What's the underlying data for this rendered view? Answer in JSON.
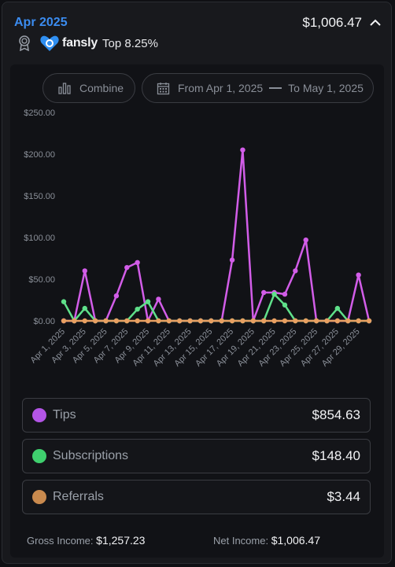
{
  "header": {
    "month": "Apr 2025",
    "total": "$1,006.47",
    "brand": "fansly",
    "rank": "Top 8.25%"
  },
  "icons": {
    "award": "award-ribbon-icon",
    "logo": "fansly-heart-logo",
    "collapse": "chevron-up-icon",
    "combine": "bar-chart-icon",
    "calendar": "calendar-icon"
  },
  "controls": {
    "combine_label": "Combine",
    "from_label": "From Apr 1, 2025",
    "to_label": "To May 1, 2025"
  },
  "chart_data": {
    "type": "line",
    "y_tick_labels": [
      "$0.00",
      "$50.00",
      "$100.00",
      "$150.00",
      "$200.00",
      "$250.00"
    ],
    "ylim": [
      0,
      250
    ],
    "x_tick_labels": [
      "Apr 1, 2025",
      "Apr 3, 2025",
      "Apr 5, 2025",
      "Apr 7, 2025",
      "Apr 9, 2025",
      "Apr 11, 2025",
      "Apr 13, 2025",
      "Apr 15, 2025",
      "Apr 17, 2025",
      "Apr 19, 2025",
      "Apr 21, 2025",
      "Apr 23, 2025",
      "Apr 25, 2025",
      "Apr 27, 2025",
      "Apr 29, 2025"
    ],
    "x": [
      "Apr 1",
      "Apr 2",
      "Apr 3",
      "Apr 4",
      "Apr 5",
      "Apr 6",
      "Apr 7",
      "Apr 8",
      "Apr 9",
      "Apr 10",
      "Apr 11",
      "Apr 12",
      "Apr 13",
      "Apr 14",
      "Apr 15",
      "Apr 16",
      "Apr 17",
      "Apr 18",
      "Apr 19",
      "Apr 20",
      "Apr 21",
      "Apr 22",
      "Apr 23",
      "Apr 24",
      "Apr 25",
      "Apr 26",
      "Apr 27",
      "Apr 28",
      "Apr 29",
      "Apr 30"
    ],
    "grid": false,
    "series": [
      {
        "name": "Tips",
        "color": "#d25de8",
        "values": [
          0,
          0,
          60,
          0,
          0,
          30,
          64,
          70,
          0,
          26,
          0,
          0,
          0,
          0,
          0,
          0,
          73,
          205,
          0,
          34,
          34,
          32,
          60,
          97,
          0,
          0,
          0,
          0,
          55,
          0
        ]
      },
      {
        "name": "Subscriptions",
        "color": "#5fe08a",
        "values": [
          23,
          0,
          15,
          0,
          0,
          0,
          0,
          14,
          23,
          0,
          0,
          0,
          0,
          0,
          0,
          0,
          0,
          0,
          0,
          0,
          32,
          19,
          0,
          0,
          0,
          0,
          15,
          0,
          0,
          0
        ]
      },
      {
        "name": "Referrals",
        "color": "#e8a062",
        "values": [
          0,
          0,
          0,
          0,
          0,
          0,
          0,
          0,
          0,
          0,
          0,
          0,
          0,
          0,
          0,
          0,
          0,
          0,
          0,
          0,
          0,
          0,
          0,
          0,
          0,
          0,
          0,
          0,
          0,
          0
        ]
      }
    ]
  },
  "legend": [
    {
      "label": "Tips",
      "value": "$854.63",
      "color": "#b355e6"
    },
    {
      "label": "Subscriptions",
      "value": "$148.40",
      "color": "#3fcf6e"
    },
    {
      "label": "Referrals",
      "value": "$3.44",
      "color": "#c98a4e"
    }
  ],
  "footer": {
    "gross_label": "Gross Income:",
    "gross_value": "$1,257.23",
    "net_label": "Net Income:",
    "net_value": "$1,006.47"
  }
}
